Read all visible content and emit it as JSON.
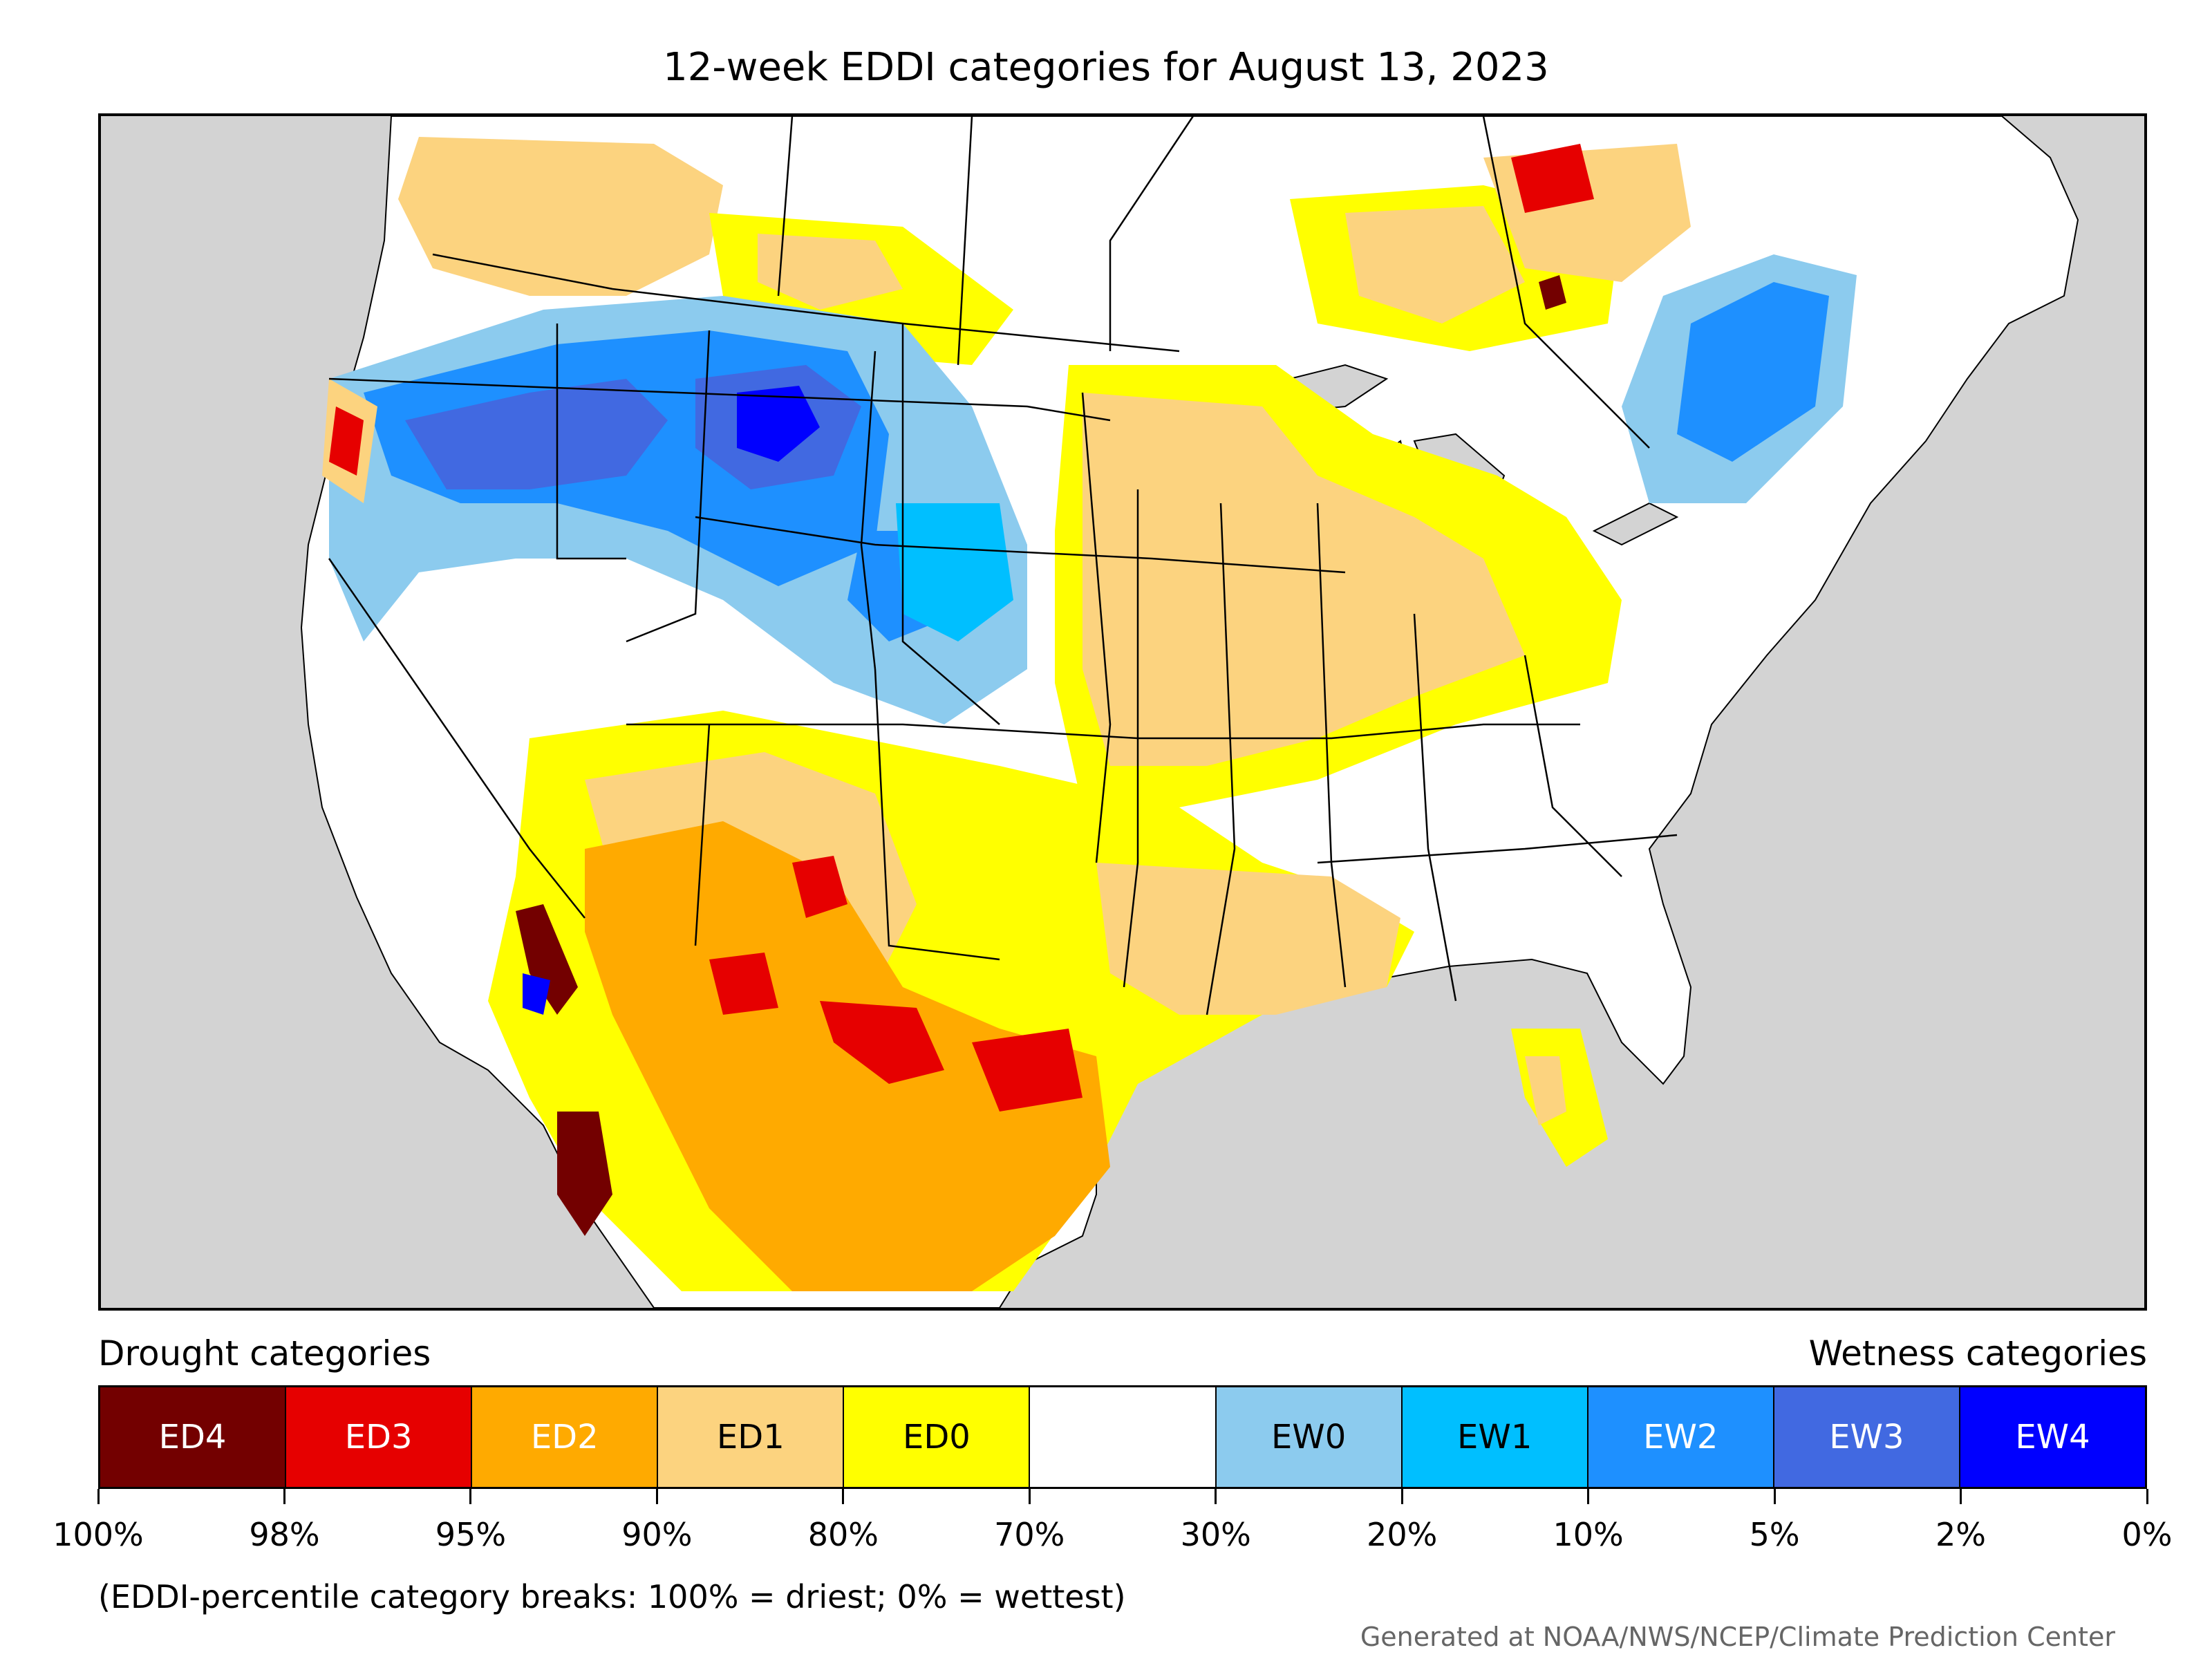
{
  "title": "12-week EDDI categories for August 13, 2023",
  "legend": {
    "drought_label": "Drought categories",
    "wetness_label": "Wetness categories",
    "categories": [
      {
        "label": "ED4",
        "color": "#730000",
        "text_color": "#ffffff"
      },
      {
        "label": "ED3",
        "color": "#e60000",
        "text_color": "#ffffff"
      },
      {
        "label": "ED2",
        "color": "#ffaa00",
        "text_color": "#ffffff"
      },
      {
        "label": "ED1",
        "color": "#fcd37f",
        "text_color": "#000000"
      },
      {
        "label": "ED0",
        "color": "#ffff00",
        "text_color": "#000000"
      },
      {
        "label": "",
        "color": "#ffffff",
        "text_color": "#000000"
      },
      {
        "label": "EW0",
        "color": "#8ccbee",
        "text_color": "#000000"
      },
      {
        "label": "EW1",
        "color": "#00bfff",
        "text_color": "#000000"
      },
      {
        "label": "EW2",
        "color": "#1e90ff",
        "text_color": "#ffffff"
      },
      {
        "label": "EW3",
        "color": "#4169e1",
        "text_color": "#ffffff"
      },
      {
        "label": "EW4",
        "color": "#0000ff",
        "text_color": "#ffffff"
      }
    ],
    "breaks": [
      "100%",
      "98%",
      "95%",
      "90%",
      "80%",
      "70%",
      "30%",
      "20%",
      "10%",
      "5%",
      "2%",
      "0%"
    ],
    "note": "(EDDI-percentile category breaks: 100% = driest; 0% = wettest)"
  },
  "credit": "Generated at NOAA/NWS/NCEP/Climate Prediction Center",
  "map": {
    "ocean_color": "#d3d3d3",
    "land_color": "#ffffff",
    "boundary_color": "#000000"
  }
}
